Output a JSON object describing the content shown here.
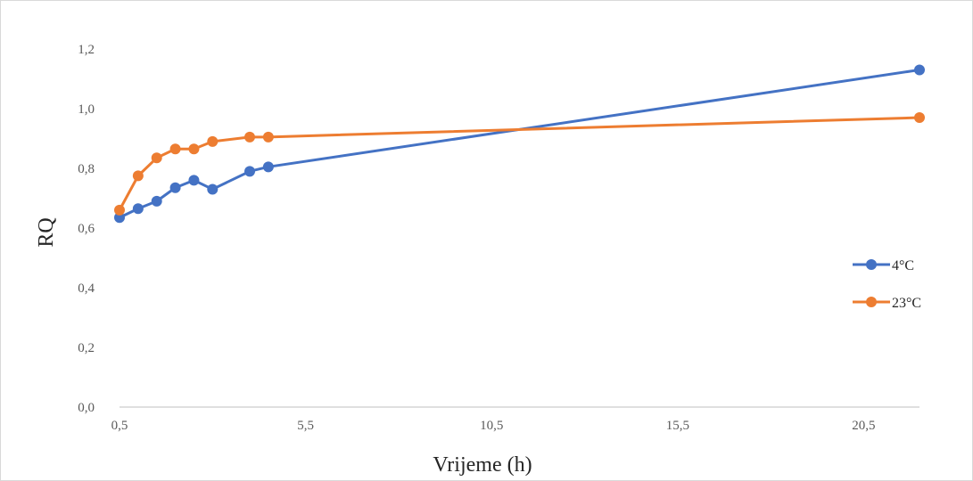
{
  "chart_data": {
    "type": "scatter",
    "title": "",
    "xlabel": "Vrijeme (h)",
    "ylabel": "RQ",
    "xlim": [
      0.5,
      22.0
    ],
    "ylim": [
      0.0,
      1.2
    ],
    "x_ticks": [
      0.5,
      5.5,
      10.5,
      15.5,
      20.5
    ],
    "x_tick_labels": [
      "0,5",
      "5,5",
      "10,5",
      "15,5",
      "20,5"
    ],
    "y_ticks": [
      0.0,
      0.2,
      0.4,
      0.6,
      0.8,
      1.0,
      1.2
    ],
    "y_tick_labels": [
      "0,0",
      "0,2",
      "0,4",
      "0,6",
      "0,8",
      "1,0",
      "1,2"
    ],
    "grid": false,
    "legend_position": "right",
    "series": [
      {
        "name": "4°C",
        "color": "#4472c4",
        "x": [
          0.5,
          1.0,
          1.5,
          2.0,
          2.5,
          3.0,
          4.0,
          4.5,
          22.0
        ],
        "y": [
          0.635,
          0.665,
          0.69,
          0.735,
          0.76,
          0.73,
          0.79,
          0.805,
          1.13
        ]
      },
      {
        "name": "23°C",
        "color": "#ed7d31",
        "x": [
          0.5,
          1.0,
          1.5,
          2.0,
          2.5,
          3.0,
          4.0,
          4.5,
          22.0
        ],
        "y": [
          0.66,
          0.775,
          0.835,
          0.865,
          0.865,
          0.89,
          0.905,
          0.905,
          0.97
        ]
      }
    ]
  }
}
